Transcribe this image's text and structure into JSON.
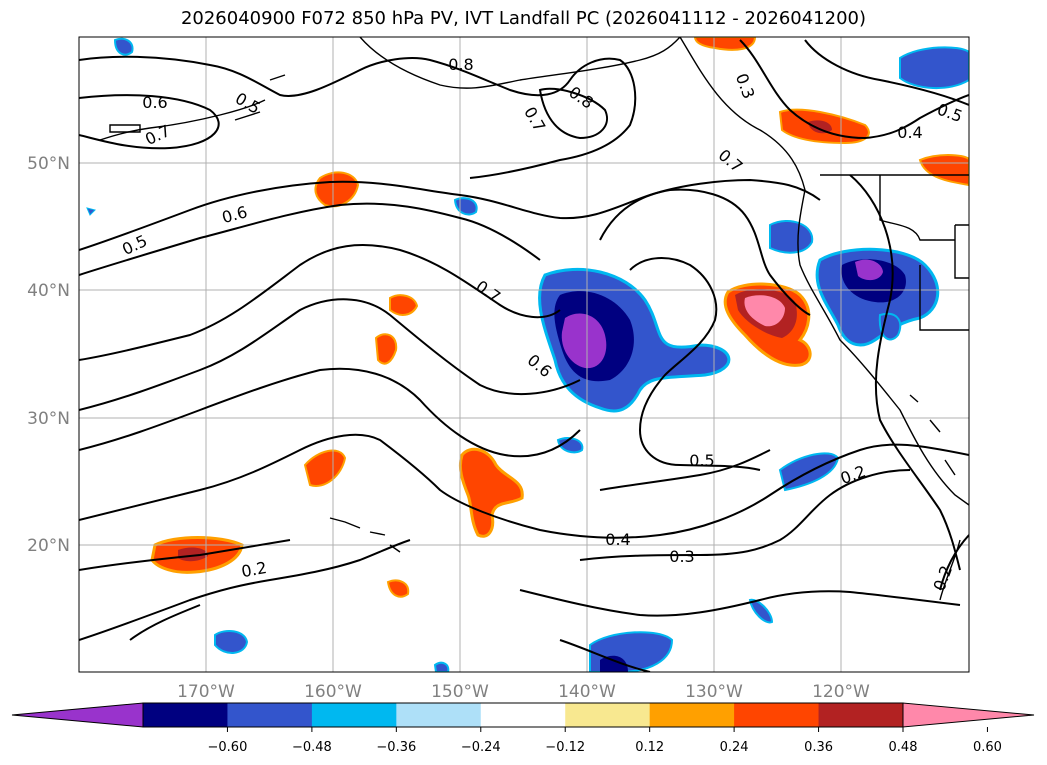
{
  "title": "2026040900 F072 850 hPa PV, IVT Landfall PC (2026041112 - 2026041200)",
  "map": {
    "lat_labels": [
      "50°N",
      "40°N",
      "30°N",
      "20°N"
    ],
    "lon_labels": [
      "170°W",
      "160°W",
      "150°W",
      "140°W",
      "130°W",
      "120°W"
    ],
    "contour_labels": [
      "0.8",
      "0.6",
      "0.5",
      "0.7",
      "0.8",
      "0.7",
      "0.3",
      "0.5",
      "0.4",
      "0.7",
      "0.6",
      "0.5",
      "0.7",
      "0.6",
      "0.5",
      "0.4",
      "0.3",
      "0.2",
      "0.2",
      "0.2"
    ],
    "colors": {
      "land_outline": "#000000",
      "grid": "#b0b0b0",
      "purple": "#9933cc",
      "navy": "#000080",
      "blue": "#3355cc",
      "cyan": "#00b8f0",
      "light_blue": "#aee0f8",
      "yellow": "#f8e890",
      "orange": "#ffa000",
      "red_orange": "#ff4500",
      "dark_red": "#b22222",
      "pink": "#ff88aa"
    }
  },
  "colorbar": {
    "ticks": [
      "−0.60",
      "−0.48",
      "−0.36",
      "−0.24",
      "−0.12",
      "0.12",
      "0.24",
      "0.36",
      "0.48",
      "0.60"
    ],
    "colors": [
      "#9933cc",
      "#000080",
      "#3355cc",
      "#00b8f0",
      "#aee0f8",
      "#ffffff",
      "#f8e890",
      "#ffa000",
      "#ff4500",
      "#b22222",
      "#ff88aa"
    ]
  }
}
